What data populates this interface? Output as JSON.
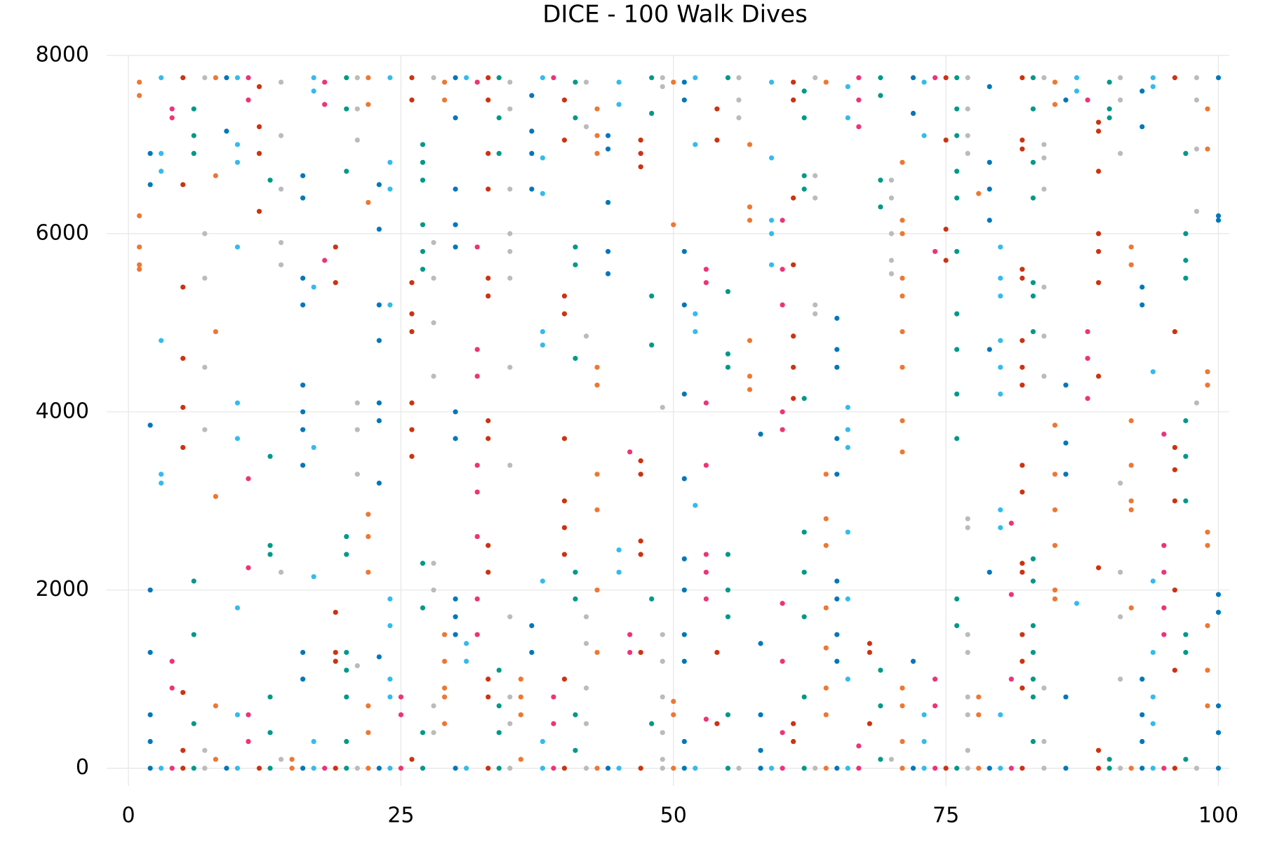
{
  "chart_data": {
    "type": "scatter",
    "title": "DICE - 100 Walk Dives",
    "xlim": [
      -2,
      101
    ],
    "ylim": [
      -200,
      8000
    ],
    "xticks": [
      0,
      25,
      50,
      75,
      100
    ],
    "yticks": [
      0,
      2000,
      4000,
      6000,
      8000
    ],
    "grid": true,
    "palette": [
      "#ee7733",
      "#0077bb",
      "#33bbee",
      "#ee3377",
      "#cc3311",
      "#009988",
      "#bbbbbb"
    ],
    "series": [
      {
        "x": 1,
        "values": [
          7700,
          7550,
          6200,
          5850,
          5650,
          5600
        ]
      },
      {
        "x": 2,
        "values": [
          6900,
          6550,
          3850,
          2000,
          1300,
          600,
          300,
          0
        ]
      },
      {
        "x": 3,
        "values": [
          7750,
          6900,
          6700,
          4800,
          3300,
          3200,
          0
        ]
      },
      {
        "x": 4,
        "values": [
          7400,
          7300,
          1200,
          900,
          0
        ]
      },
      {
        "x": 5,
        "values": [
          7750,
          6550,
          5400,
          4600,
          4050,
          3600,
          850,
          200,
          0
        ]
      },
      {
        "x": 6,
        "values": [
          7400,
          7100,
          6900,
          2100,
          1500,
          500,
          0
        ]
      },
      {
        "x": 7,
        "values": [
          7750,
          6000,
          5500,
          4500,
          3800,
          200,
          0
        ]
      },
      {
        "x": 8,
        "values": [
          7750,
          6650,
          4900,
          3050,
          700,
          100
        ]
      },
      {
        "x": 9,
        "values": [
          7750,
          7150,
          0
        ]
      },
      {
        "x": 10,
        "values": [
          7750,
          7000,
          6800,
          5850,
          4100,
          3700,
          1800,
          600,
          0
        ]
      },
      {
        "x": 11,
        "values": [
          7750,
          7500,
          3250,
          2250,
          600,
          300
        ]
      },
      {
        "x": 12,
        "values": [
          7650,
          7200,
          6900,
          6250,
          0
        ]
      },
      {
        "x": 13,
        "values": [
          6600,
          3500,
          2500,
          2400,
          800,
          400,
          0
        ]
      },
      {
        "x": 14,
        "values": [
          7700,
          7100,
          6500,
          5900,
          5650,
          2200,
          100
        ]
      },
      {
        "x": 15,
        "values": [
          100,
          0
        ]
      },
      {
        "x": 16,
        "values": [
          6650,
          6400,
          5500,
          5200,
          4300,
          4000,
          3800,
          3400,
          1300,
          1000,
          0
        ]
      },
      {
        "x": 17,
        "values": [
          7750,
          7600,
          5400,
          3600,
          2150,
          300,
          0
        ]
      },
      {
        "x": 18,
        "values": [
          7700,
          7450,
          5700,
          0
        ]
      },
      {
        "x": 19,
        "values": [
          5850,
          5450,
          1750,
          1300,
          1200,
          0
        ]
      },
      {
        "x": 20,
        "values": [
          7750,
          7400,
          6700,
          2600,
          2400,
          1300,
          1100,
          800,
          300,
          0
        ]
      },
      {
        "x": 21,
        "values": [
          7750,
          7400,
          7050,
          4100,
          3800,
          3300,
          1150,
          0
        ]
      },
      {
        "x": 22,
        "values": [
          7750,
          7450,
          6350,
          2850,
          2600,
          2200,
          700,
          400,
          0
        ]
      },
      {
        "x": 23,
        "values": [
          6550,
          6050,
          5200,
          4800,
          4100,
          3900,
          3200,
          1250,
          0
        ]
      },
      {
        "x": 24,
        "values": [
          7750,
          6800,
          6500,
          5200,
          1900,
          1600,
          1000,
          800,
          0
        ]
      },
      {
        "x": 25,
        "values": [
          800,
          600,
          0
        ]
      },
      {
        "x": 26,
        "values": [
          7750,
          7500,
          5450,
          5100,
          4900,
          4100,
          3800,
          3500,
          100
        ]
      },
      {
        "x": 27,
        "values": [
          7000,
          6800,
          6600,
          6100,
          5800,
          5600,
          2300,
          1800,
          400,
          0
        ]
      },
      {
        "x": 28,
        "values": [
          7750,
          5900,
          5500,
          5000,
          4400,
          2300,
          2000,
          700,
          400
        ]
      },
      {
        "x": 29,
        "values": [
          7700,
          7500,
          1500,
          1200,
          900,
          800,
          500
        ]
      },
      {
        "x": 30,
        "values": [
          7750,
          7300,
          6500,
          6100,
          5850,
          4000,
          3700,
          1900,
          1700,
          1500,
          0
        ]
      },
      {
        "x": 31,
        "values": [
          7750,
          1400,
          1200,
          0
        ]
      },
      {
        "x": 32,
        "values": [
          7700,
          5850,
          4700,
          4400,
          3400,
          3100,
          2600,
          1900,
          1500
        ]
      },
      {
        "x": 33,
        "values": [
          7750,
          7500,
          6900,
          6500,
          5500,
          5300,
          3900,
          3700,
          2500,
          2200,
          1000,
          800,
          0
        ]
      },
      {
        "x": 34,
        "values": [
          7750,
          7300,
          6900,
          1100,
          700,
          400,
          0
        ]
      },
      {
        "x": 35,
        "values": [
          7700,
          7400,
          6500,
          6000,
          5800,
          5500,
          4500,
          3400,
          1700,
          800,
          500,
          0
        ]
      },
      {
        "x": 36,
        "values": [
          1000,
          800,
          600,
          100
        ]
      },
      {
        "x": 37,
        "values": [
          7550,
          7150,
          6900,
          6500,
          1600,
          1300
        ]
      },
      {
        "x": 38,
        "values": [
          7750,
          6850,
          6450,
          4900,
          4750,
          2100,
          300,
          0
        ]
      },
      {
        "x": 39,
        "values": [
          7750,
          800,
          500,
          0
        ]
      },
      {
        "x": 40,
        "values": [
          7500,
          7050,
          5300,
          5100,
          3700,
          3000,
          2700,
          2400,
          1000,
          0
        ]
      },
      {
        "x": 41,
        "values": [
          7700,
          7300,
          5850,
          5650,
          4600,
          2200,
          1900,
          600,
          200
        ]
      },
      {
        "x": 42,
        "values": [
          7700,
          7200,
          4850,
          1700,
          1400,
          900,
          500,
          0
        ]
      },
      {
        "x": 43,
        "values": [
          7400,
          7100,
          6900,
          4500,
          4300,
          3300,
          2900,
          2000,
          1300,
          0
        ]
      },
      {
        "x": 44,
        "values": [
          7100,
          6950,
          6350,
          5800,
          5550,
          0
        ]
      },
      {
        "x": 45,
        "values": [
          7700,
          7450,
          2450,
          2200,
          0
        ]
      },
      {
        "x": 46,
        "values": [
          3550,
          1500,
          1300
        ]
      },
      {
        "x": 47,
        "values": [
          7050,
          6900,
          6750,
          3450,
          3300,
          2550,
          2400,
          1300,
          0
        ]
      },
      {
        "x": 48,
        "values": [
          7750,
          7350,
          5300,
          4750,
          1900,
          500
        ]
      },
      {
        "x": 49,
        "values": [
          7750,
          7650,
          4050,
          1500,
          1200,
          800,
          400,
          100,
          0
        ]
      },
      {
        "x": 50,
        "values": [
          7700,
          6100,
          750,
          600,
          0
        ]
      },
      {
        "x": 51,
        "values": [
          7700,
          7500,
          5800,
          5200,
          4200,
          3250,
          2350,
          2000,
          1500,
          1200,
          300,
          0
        ]
      },
      {
        "x": 52,
        "values": [
          7750,
          7000,
          5100,
          4900,
          2950,
          0
        ]
      },
      {
        "x": 53,
        "values": [
          5600,
          5450,
          4100,
          3400,
          2400,
          2200,
          1900,
          550
        ]
      },
      {
        "x": 54,
        "values": [
          7400,
          7050,
          1300,
          500
        ]
      },
      {
        "x": 55,
        "values": [
          7750,
          5350,
          4650,
          4500,
          2400,
          2000,
          1700,
          600,
          0
        ]
      },
      {
        "x": 56,
        "values": [
          7750,
          7500,
          7300,
          0
        ]
      },
      {
        "x": 57,
        "values": [
          7000,
          6300,
          6150,
          4800,
          4400,
          4250
        ]
      },
      {
        "x": 58,
        "values": [
          3750,
          1400,
          600,
          200,
          0
        ]
      },
      {
        "x": 59,
        "values": [
          7700,
          6850,
          6150,
          6000,
          5650,
          0
        ]
      },
      {
        "x": 60,
        "values": [
          6150,
          5600,
          5200,
          4000,
          3800,
          1850,
          1200,
          400,
          0
        ]
      },
      {
        "x": 61,
        "values": [
          7700,
          7500,
          6400,
          5650,
          4850,
          4500,
          4150,
          500,
          300
        ]
      },
      {
        "x": 62,
        "values": [
          7600,
          7300,
          6650,
          6500,
          4150,
          2650,
          2200,
          1700,
          800,
          0
        ]
      },
      {
        "x": 63,
        "values": [
          7750,
          6650,
          6400,
          5200,
          5100,
          0
        ]
      },
      {
        "x": 64,
        "values": [
          7700,
          3300,
          2800,
          2500,
          1800,
          1350,
          900,
          600,
          0
        ]
      },
      {
        "x": 65,
        "values": [
          5050,
          4700,
          4500,
          3700,
          3300,
          2100,
          1900,
          1500,
          1200,
          0
        ]
      },
      {
        "x": 66,
        "values": [
          7650,
          7300,
          4050,
          3800,
          3600,
          2650,
          1900,
          1000,
          0
        ]
      },
      {
        "x": 67,
        "values": [
          7750,
          7500,
          7200,
          250,
          0
        ]
      },
      {
        "x": 68,
        "values": [
          1400,
          1300,
          500
        ]
      },
      {
        "x": 69,
        "values": [
          7750,
          7550,
          6600,
          6300,
          1100,
          700,
          100
        ]
      },
      {
        "x": 70,
        "values": [
          6600,
          6400,
          6000,
          5700,
          5550,
          100
        ]
      },
      {
        "x": 71,
        "values": [
          6800,
          6150,
          6000,
          5500,
          5300,
          4900,
          4500,
          3900,
          3550,
          900,
          700,
          300,
          0
        ]
      },
      {
        "x": 72,
        "values": [
          7750,
          7350,
          1200,
          0
        ]
      },
      {
        "x": 73,
        "values": [
          7700,
          7100,
          600,
          300,
          0
        ]
      },
      {
        "x": 74,
        "values": [
          7750,
          5800,
          1000,
          700,
          0
        ]
      },
      {
        "x": 75,
        "values": [
          7750,
          7050,
          6050,
          5700,
          0
        ]
      },
      {
        "x": 76,
        "values": [
          7750,
          7400,
          7100,
          6700,
          6400,
          5800,
          5100,
          4700,
          4200,
          3700,
          1900,
          1600,
          0
        ]
      },
      {
        "x": 77,
        "values": [
          7750,
          7400,
          7100,
          6900,
          2800,
          2700,
          1500,
          1300,
          800,
          600,
          200,
          0
        ]
      },
      {
        "x": 78,
        "values": [
          6450,
          800,
          600,
          0
        ]
      },
      {
        "x": 79,
        "values": [
          7650,
          6800,
          6500,
          6150,
          4700,
          2200,
          0
        ]
      },
      {
        "x": 80,
        "values": [
          5850,
          5500,
          5300,
          4800,
          4500,
          4200,
          2900,
          2700,
          600,
          0
        ]
      },
      {
        "x": 81,
        "values": [
          2750,
          1950,
          1000,
          0
        ]
      },
      {
        "x": 82,
        "values": [
          7750,
          7050,
          6950,
          5600,
          5500,
          4800,
          4500,
          4300,
          3400,
          3100,
          2300,
          2200,
          1500,
          1200,
          900,
          0
        ]
      },
      {
        "x": 83,
        "values": [
          7750,
          7400,
          6800,
          6400,
          5450,
          5300,
          4900,
          2350,
          2100,
          1600,
          1300,
          1000,
          800,
          300
        ]
      },
      {
        "x": 84,
        "values": [
          7750,
          7000,
          6850,
          6500,
          5400,
          4850,
          4400,
          900,
          300,
          0
        ]
      },
      {
        "x": 85,
        "values": [
          7700,
          7450,
          3850,
          3300,
          2900,
          2500,
          2000,
          1900
        ]
      },
      {
        "x": 86,
        "values": [
          7500,
          4300,
          3650,
          3300,
          800,
          0
        ]
      },
      {
        "x": 87,
        "values": [
          7750,
          7600,
          1850
        ]
      },
      {
        "x": 88,
        "values": [
          7500,
          4900,
          4600,
          4150
        ]
      },
      {
        "x": 89,
        "values": [
          7250,
          7150,
          6700,
          6000,
          5800,
          5450,
          4400,
          2250,
          200,
          0
        ]
      },
      {
        "x": 90,
        "values": [
          7700,
          7400,
          7300,
          100,
          0
        ]
      },
      {
        "x": 91,
        "values": [
          7750,
          7500,
          6900,
          3200,
          2200,
          1700,
          1000,
          0
        ]
      },
      {
        "x": 92,
        "values": [
          5850,
          5650,
          3900,
          3400,
          3000,
          2900,
          1800,
          0
        ]
      },
      {
        "x": 93,
        "values": [
          7600,
          7200,
          5400,
          5200,
          1000,
          600,
          300,
          0
        ]
      },
      {
        "x": 94,
        "values": [
          7750,
          7650,
          4450,
          2100,
          1300,
          800,
          500,
          0
        ]
      },
      {
        "x": 95,
        "values": [
          3750,
          2500,
          2200,
          1800,
          1500,
          0
        ]
      },
      {
        "x": 96,
        "values": [
          7750,
          4900,
          3600,
          3350,
          3000,
          2000,
          1100,
          0
        ]
      },
      {
        "x": 97,
        "values": [
          6900,
          6000,
          5700,
          5500,
          3900,
          3500,
          3000,
          1500,
          1300,
          100
        ]
      },
      {
        "x": 98,
        "values": [
          7750,
          7500,
          6950,
          6250,
          4100,
          0
        ]
      },
      {
        "x": 99,
        "values": [
          7400,
          6950,
          4450,
          4300,
          2650,
          2500,
          1600,
          1100,
          700
        ]
      },
      {
        "x": 100,
        "values": [
          7750,
          6200,
          6150,
          1950,
          1750,
          700,
          400,
          0
        ]
      }
    ]
  }
}
